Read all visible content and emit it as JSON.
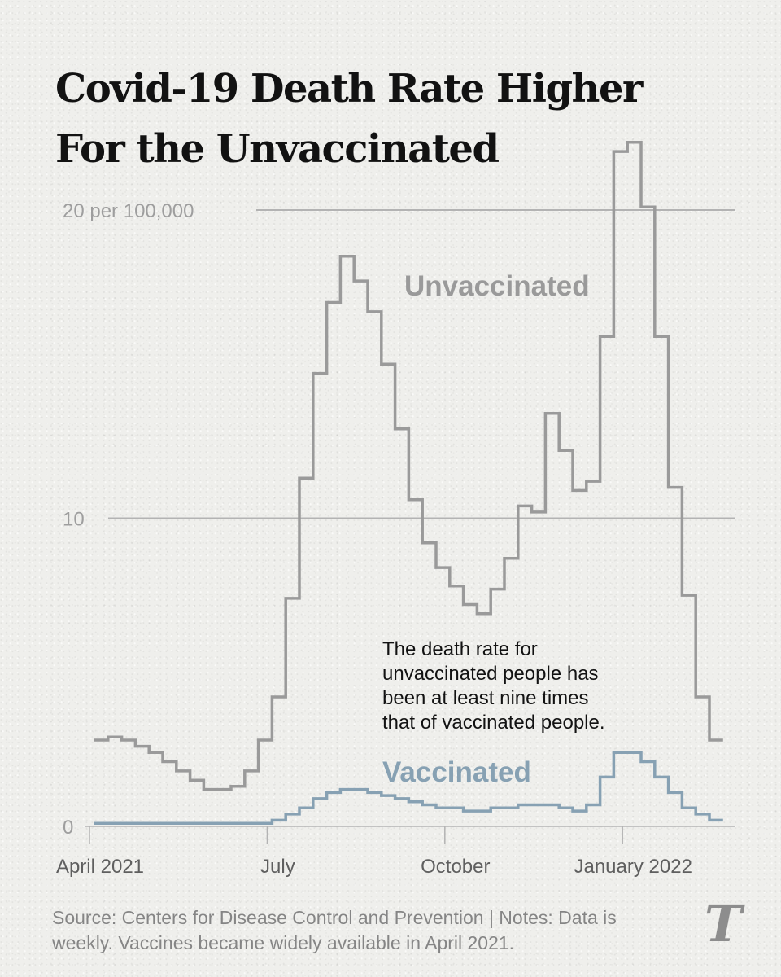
{
  "title": {
    "line1": "Covid-19 Death Rate Higher",
    "line2": "For the Unvaccinated"
  },
  "chart_data": {
    "type": "line",
    "step": true,
    "title": "Covid-19 Death Rate Higher For the Unvaccinated",
    "ylabel": "per 100,000",
    "ylim": [
      0,
      22
    ],
    "y_ticks": [
      {
        "value": 0,
        "label": "0"
      },
      {
        "value": 10,
        "label": "10"
      },
      {
        "value": 20,
        "label": "20 per 100,000"
      }
    ],
    "x_ticks": [
      {
        "week": 0,
        "label": "April 2021"
      },
      {
        "week": 13,
        "label": "July"
      },
      {
        "week": 26,
        "label": "October"
      },
      {
        "week": 39,
        "label": "January 2022"
      }
    ],
    "x_unit": "weeks since early April 2021",
    "xlim": [
      0,
      47
    ],
    "series": [
      {
        "name": "Unvaccinated",
        "color": "#9a9a9a",
        "values": [
          2.8,
          2.9,
          2.8,
          2.6,
          2.4,
          2.1,
          1.8,
          1.5,
          1.2,
          1.2,
          1.3,
          1.8,
          2.8,
          4.2,
          7.4,
          11.3,
          14.7,
          17.0,
          18.5,
          17.7,
          16.7,
          15.0,
          12.9,
          10.6,
          9.2,
          8.4,
          7.8,
          7.2,
          6.9,
          7.7,
          8.7,
          10.4,
          10.2,
          13.4,
          12.2,
          10.9,
          11.2,
          15.9,
          21.9,
          22.2,
          20.1,
          15.9,
          11.0,
          7.5,
          4.2,
          2.8
        ]
      },
      {
        "name": "Vaccinated",
        "color": "#87a1b3",
        "values": [
          0.1,
          0.1,
          0.1,
          0.1,
          0.1,
          0.1,
          0.1,
          0.1,
          0.1,
          0.1,
          0.1,
          0.1,
          0.1,
          0.2,
          0.4,
          0.6,
          0.9,
          1.1,
          1.2,
          1.2,
          1.1,
          1.0,
          0.9,
          0.8,
          0.7,
          0.6,
          0.6,
          0.5,
          0.5,
          0.6,
          0.6,
          0.7,
          0.7,
          0.7,
          0.6,
          0.5,
          0.7,
          1.6,
          2.4,
          2.4,
          2.1,
          1.6,
          1.1,
          0.6,
          0.4,
          0.2
        ]
      }
    ],
    "annotations": [
      {
        "id": "unvaccinated",
        "text": "Unvaccinated",
        "color": "#9a9a9a"
      },
      {
        "id": "vaccinated",
        "text": "Vaccinated",
        "color": "#87a1b3"
      },
      {
        "id": "note",
        "lines": [
          "The death rate for",
          "unvaccinated people has",
          "been at least nine times",
          "that of vaccinated people."
        ]
      }
    ]
  },
  "source": {
    "line1": "Source: Centers for Disease Control and Prevention | Notes: Data is",
    "line2": "weekly. Vaccines became widely available in April 2021."
  },
  "logo": {
    "icon": "nyt-t-logo-icon",
    "glyph": "T"
  },
  "colors": {
    "background": "#efefec",
    "title": "#121212",
    "axis": "#b3b3b3",
    "tick_label": "#9e9e9e",
    "note_text": "#121212",
    "source_text": "#858585"
  }
}
